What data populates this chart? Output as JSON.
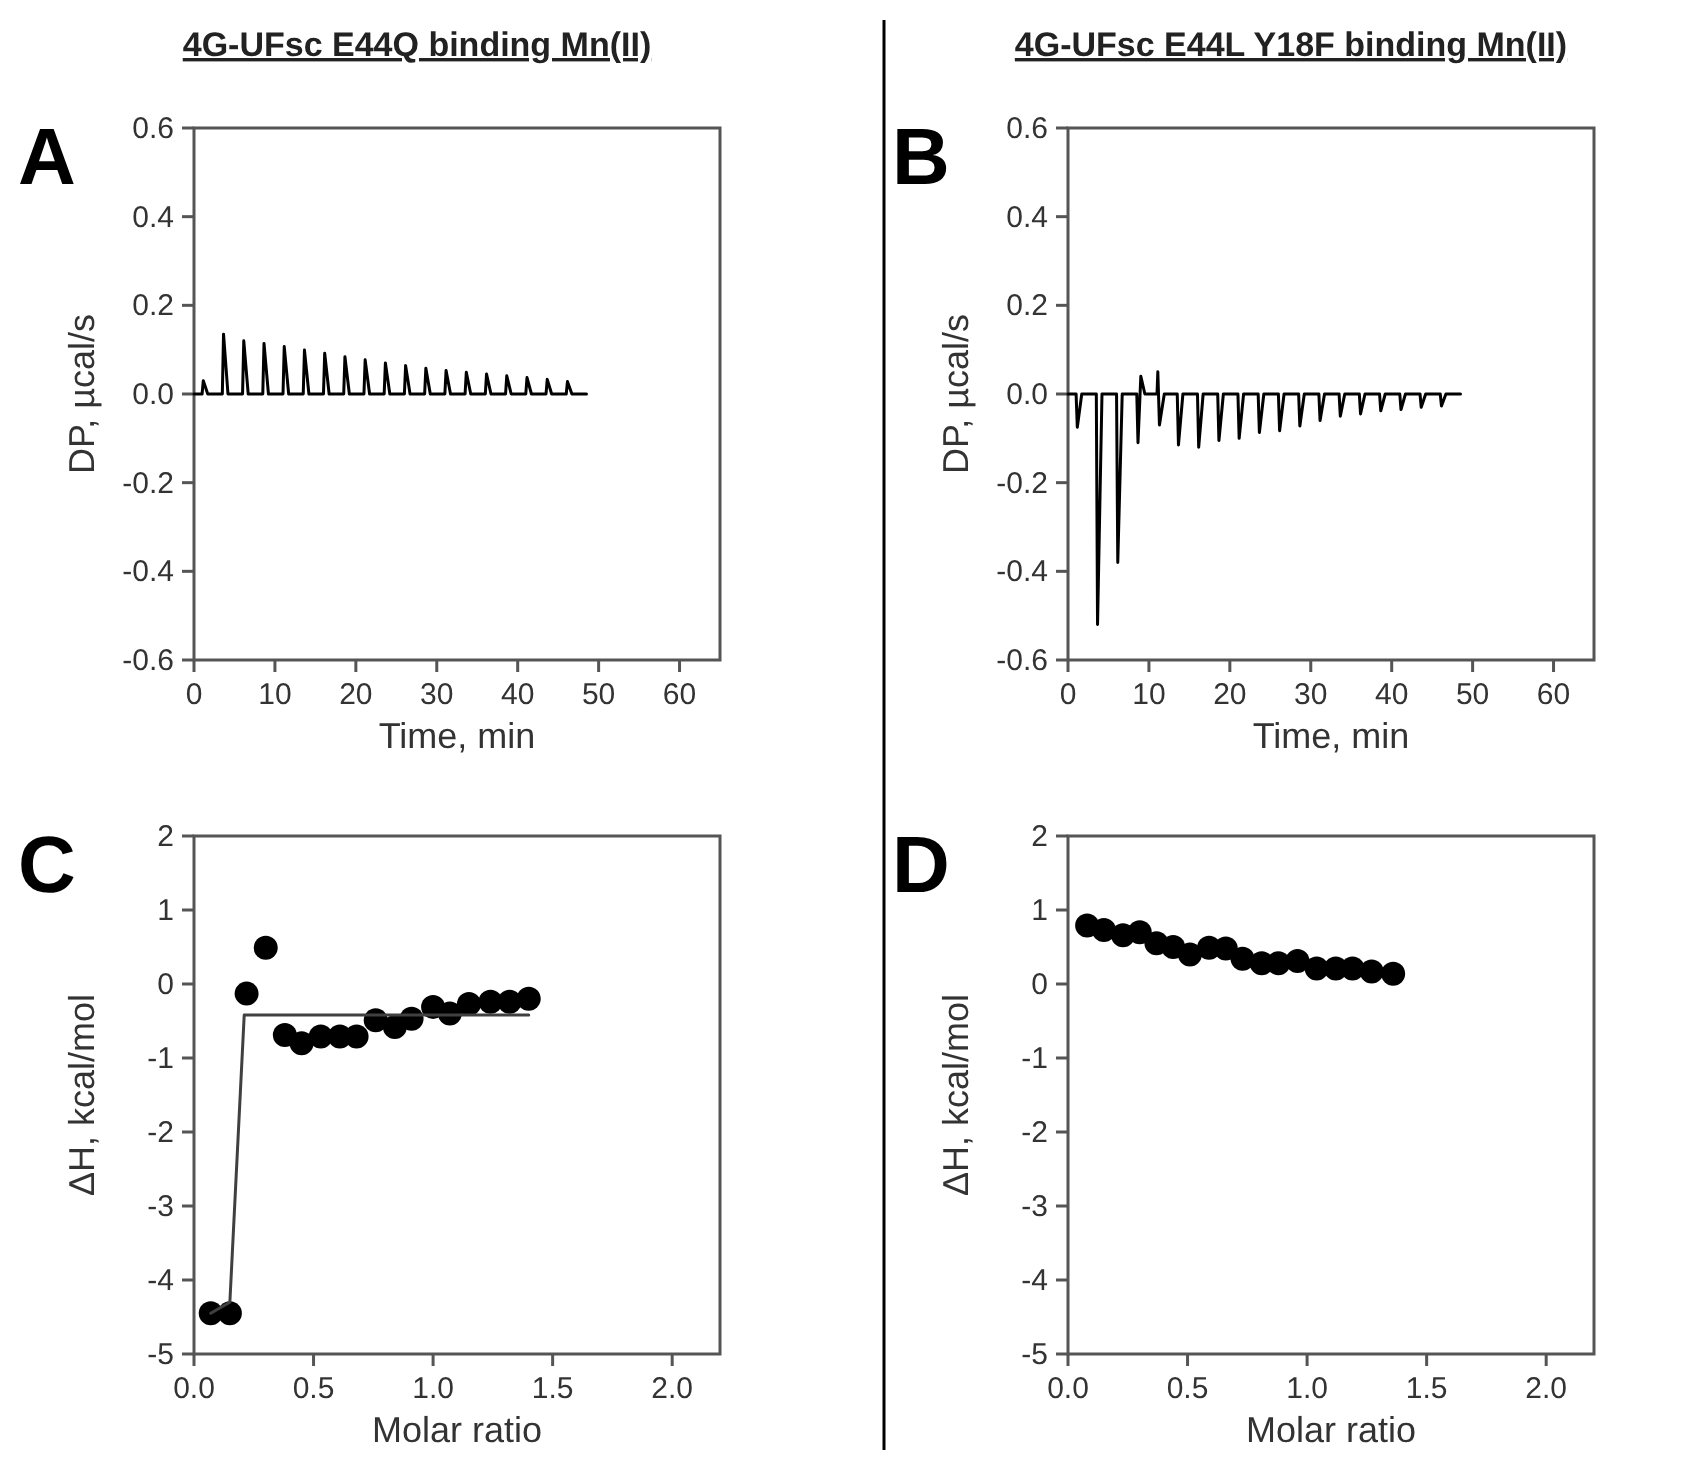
{
  "chart_data": [
    {
      "type": "line",
      "title": "4G-UFsc E44Q binding Mn(II)",
      "annotations": [
        "A"
      ],
      "xlabel": "Time, min",
      "ylabel": "DP, µcal/s",
      "xlim": [
        0,
        65
      ],
      "xticks": [
        0,
        10,
        20,
        30,
        40,
        50,
        60
      ],
      "ylim": [
        -0.6,
        0.6
      ],
      "yticks": [
        -0.6,
        -0.4,
        -0.2,
        {
          "value": 0,
          "label": "0.0"
        },
        0.2,
        0.4,
        0.6
      ],
      "line_style": "solid",
      "series": [
        {
          "color": "#000000",
          "x": [
            0,
            1,
            1.15,
            1.7,
            3.5,
            3.65,
            4.2,
            6,
            6.15,
            6.7,
            8.5,
            8.65,
            9.2,
            11,
            11.15,
            11.7,
            13.5,
            13.65,
            14.2,
            16,
            16.15,
            16.7,
            18.5,
            18.65,
            19.2,
            21,
            21.15,
            21.7,
            23.5,
            23.65,
            24.2,
            26,
            26.15,
            26.7,
            28.5,
            28.65,
            29.2,
            31,
            31.15,
            31.7,
            33.5,
            33.65,
            34.2,
            36,
            36.15,
            36.7,
            38.5,
            38.65,
            39.2,
            41,
            41.15,
            41.7,
            43.5,
            43.65,
            44.2,
            46,
            46.15,
            46.7,
            48.5
          ],
          "values": [
            0,
            0,
            0.03,
            0,
            0,
            0.135,
            0,
            0,
            0.12,
            0,
            0,
            0.114,
            0,
            0,
            0.107,
            0,
            0,
            0.099,
            0,
            0,
            0.092,
            0,
            0,
            0.084,
            0,
            0,
            0.077,
            0,
            0,
            0.07,
            0,
            0,
            0.064,
            0,
            0,
            0.058,
            0,
            0,
            0.053,
            0,
            0,
            0.049,
            0,
            0,
            0.045,
            0,
            0,
            0.041,
            0,
            0,
            0.037,
            0,
            0,
            0.033,
            0,
            0,
            0.028,
            0,
            0
          ]
        }
      ]
    },
    {
      "type": "line",
      "title": "4G-UFsc E44L Y18F binding Mn(II)",
      "annotations": [
        "B"
      ],
      "xlabel": "Time, min",
      "ylabel": "DP, µcal/s",
      "xlim": [
        0,
        65
      ],
      "xticks": [
        0,
        10,
        20,
        30,
        40,
        50,
        60
      ],
      "ylim": [
        -0.6,
        0.6
      ],
      "yticks": [
        -0.6,
        -0.4,
        -0.2,
        {
          "value": 0,
          "label": "0.0"
        },
        0.2,
        0.4,
        0.6
      ],
      "line_style": "solid",
      "series": [
        {
          "color": "#000000",
          "x": [
            0,
            1,
            1.15,
            1.7,
            3.5,
            3.65,
            4.2,
            6,
            6.15,
            6.7,
            8.5,
            8.65,
            9,
            9.5,
            11,
            11.1,
            11.3,
            11.9,
            13.5,
            13.65,
            14.2,
            16,
            16.15,
            16.7,
            18.5,
            18.65,
            19.2,
            21,
            21.15,
            21.7,
            23.5,
            23.65,
            24.2,
            26,
            26.15,
            26.7,
            28.5,
            28.65,
            29.2,
            31,
            31.15,
            31.7,
            33.5,
            33.65,
            34.2,
            36,
            36.15,
            36.7,
            38.5,
            38.65,
            39.2,
            41,
            41.15,
            41.7,
            43.5,
            43.65,
            44.2,
            46,
            46.15,
            46.7,
            48.5
          ],
          "values": [
            0,
            0,
            -0.075,
            0,
            0,
            -0.52,
            0,
            0,
            -0.38,
            0,
            0,
            -0.11,
            0.04,
            0,
            0,
            0.05,
            -0.07,
            0,
            0,
            -0.115,
            0,
            0,
            -0.12,
            0,
            0,
            -0.105,
            0,
            0,
            -0.1,
            0,
            0,
            -0.087,
            0,
            0,
            -0.083,
            0,
            0,
            -0.072,
            0,
            0,
            -0.06,
            0,
            0,
            -0.05,
            0,
            0,
            -0.045,
            0,
            0,
            -0.038,
            0,
            0,
            -0.035,
            0,
            0,
            -0.03,
            0,
            0,
            -0.027,
            0,
            0
          ]
        }
      ]
    },
    {
      "type": "scatter",
      "annotations": [
        "C"
      ],
      "xlabel": "Molar ratio",
      "ylabel": "ΔH, kcal/mol",
      "xlim": [
        0,
        2.2
      ],
      "xticks": [
        {
          "value": 0,
          "label": "0.0"
        },
        0.5,
        {
          "value": 1,
          "label": "1.0"
        },
        1.5,
        {
          "value": 2,
          "label": "2.0"
        }
      ],
      "ylim": [
        -5,
        2
      ],
      "yticks": [
        -5,
        -4,
        -3,
        -2,
        -1,
        0,
        1,
        2
      ],
      "marker": "circle",
      "line_style": "solid",
      "series": [
        {
          "color": "#000000",
          "x": [
            0.07,
            0.15,
            0.22,
            0.3,
            0.38,
            0.45,
            0.53,
            0.61,
            0.68,
            0.76,
            0.84,
            0.91,
            1.0,
            1.07,
            1.15,
            1.24,
            1.32,
            1.4
          ],
          "values": [
            -4.45,
            -4.45,
            -0.13,
            0.49,
            -0.69,
            -0.8,
            -0.71,
            -0.71,
            -0.71,
            -0.49,
            -0.58,
            -0.47,
            -0.31,
            -0.4,
            -0.27,
            -0.24,
            -0.24,
            -0.2
          ]
        },
        {
          "type": "line",
          "marker": "none",
          "color": "#404040",
          "x": [
            0.07,
            0.15,
            0.21,
            1.4
          ],
          "values": [
            -4.45,
            -4.3,
            -0.42,
            -0.42
          ]
        }
      ]
    },
    {
      "type": "scatter",
      "annotations": [
        "D"
      ],
      "xlabel": "Molar ratio",
      "ylabel": "ΔH, kcal/mol",
      "xlim": [
        0,
        2.2
      ],
      "xticks": [
        {
          "value": 0,
          "label": "0.0"
        },
        0.5,
        {
          "value": 1,
          "label": "1.0"
        },
        1.5,
        {
          "value": 2,
          "label": "2.0"
        }
      ],
      "ylim": [
        -5,
        2
      ],
      "yticks": [
        -5,
        -4,
        -3,
        -2,
        -1,
        0,
        1,
        2
      ],
      "marker": "circle",
      "series": [
        {
          "color": "#000000",
          "x": [
            0.08,
            0.15,
            0.23,
            0.3,
            0.37,
            0.44,
            0.51,
            0.59,
            0.66,
            0.73,
            0.81,
            0.88,
            0.96,
            1.04,
            1.12,
            1.19,
            1.27,
            1.36
          ],
          "values": [
            0.79,
            0.73,
            0.66,
            0.7,
            0.55,
            0.5,
            0.4,
            0.49,
            0.48,
            0.34,
            0.28,
            0.28,
            0.31,
            0.21,
            0.21,
            0.21,
            0.17,
            0.14
          ]
        }
      ]
    }
  ]
}
